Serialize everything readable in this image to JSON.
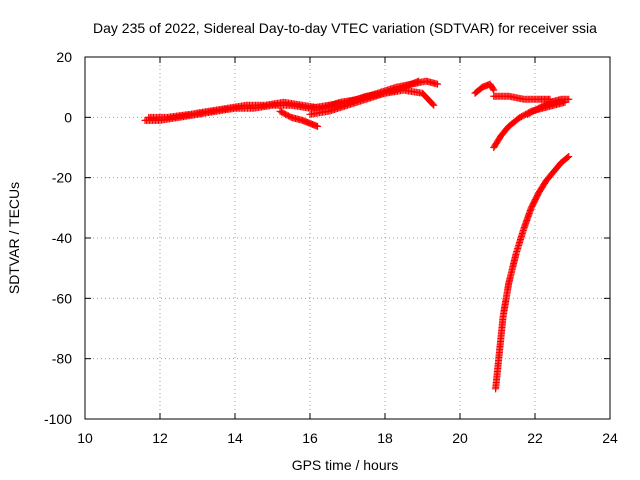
{
  "chart_data": {
    "type": "scatter",
    "title": "Day 235 of 2022, Sidereal Day-to-day VTEC variation (SDTVAR) for receiver ssia",
    "xlabel": "GPS time / hours",
    "ylabel": "SDTVAR / TECUs",
    "xlim": [
      10,
      24
    ],
    "ylim": [
      -100,
      20
    ],
    "xticks": [
      "10",
      "12",
      "14",
      "16",
      "18",
      "20",
      "22",
      "24"
    ],
    "yticks": [
      "-100",
      "-80",
      "-60",
      "-40",
      "-20",
      "0",
      "20"
    ],
    "grid": true,
    "marker": "plus",
    "color": "#ff0000",
    "series": [
      {
        "x": [
          11.6,
          12.0,
          12.5,
          13.0,
          13.5,
          14.0,
          14.5,
          15.0,
          15.5,
          16.0,
          16.5,
          17.0,
          17.5,
          18.0,
          18.5,
          19.0,
          19.3
        ],
        "y": [
          -1,
          -1,
          0,
          1,
          2,
          3,
          3,
          4,
          4,
          3,
          4,
          5,
          7,
          8,
          9,
          8,
          4
        ]
      },
      {
        "x": [
          11.7,
          12.2,
          12.8,
          13.3,
          13.8,
          14.3,
          14.8,
          15.3,
          15.8,
          16.3,
          16.8,
          17.3,
          17.8,
          18.3,
          18.7,
          19.1,
          19.4
        ],
        "y": [
          0,
          0,
          1,
          2,
          3,
          4,
          4,
          5,
          4,
          3,
          5,
          6,
          8,
          10,
          11,
          12,
          11
        ]
      },
      {
        "x": [
          15.2,
          15.5,
          15.8,
          16.0,
          16.2
        ],
        "y": [
          2,
          0,
          -1,
          -2,
          -3
        ]
      },
      {
        "x": [
          16.0,
          16.5,
          17.0,
          17.5,
          18.0,
          18.5,
          18.9
        ],
        "y": [
          1,
          2,
          4,
          6,
          8,
          10,
          12
        ]
      },
      {
        "x": [
          20.4,
          20.6,
          20.8,
          20.9
        ],
        "y": [
          8,
          10,
          11,
          9
        ]
      },
      {
        "x": [
          20.9,
          21.3,
          21.7,
          22.1,
          22.4
        ],
        "y": [
          7,
          7,
          6,
          6,
          6
        ]
      },
      {
        "x": [
          20.9,
          21.1,
          21.3,
          21.6,
          21.9,
          22.2,
          22.5,
          22.8
        ],
        "y": [
          -10,
          -6,
          -3,
          0,
          2,
          3,
          4,
          5
        ]
      },
      {
        "x": [
          21.8,
          22.1,
          22.4,
          22.7,
          22.9
        ],
        "y": [
          1,
          3,
          5,
          6,
          6
        ]
      },
      {
        "x": [
          20.95,
          21.05,
          21.15,
          21.3,
          21.5,
          21.7,
          21.9,
          22.1,
          22.3,
          22.5,
          22.7,
          22.9
        ],
        "y": [
          -90,
          -78,
          -66,
          -55,
          -45,
          -37,
          -30,
          -25,
          -21,
          -18,
          -15,
          -13
        ]
      }
    ]
  }
}
